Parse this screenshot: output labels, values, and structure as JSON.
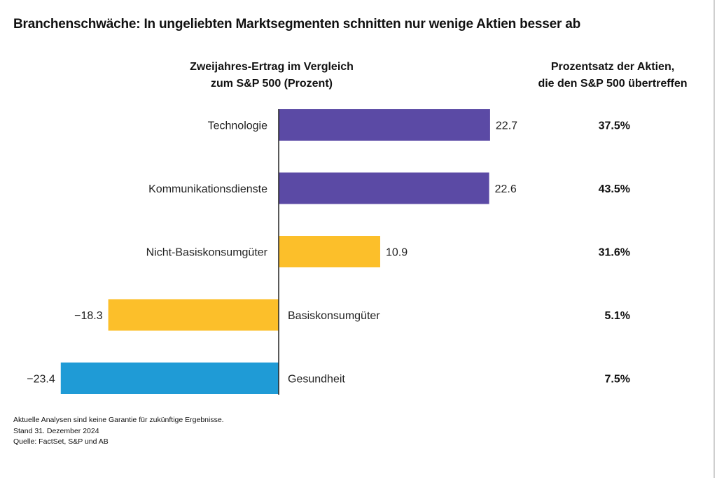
{
  "title": "Branchenschwäche: In ungeliebten Marktsegmenten schnitten nur wenige Aktien besser ab",
  "column_headers": {
    "left_line1": "Zweijahres-Ertrag im Vergleich",
    "left_line2": "zum S&P 500 (Prozent)",
    "right_line1": "Prozentsatz der Aktien,",
    "right_line2": "die den S&P 500 übertreffen"
  },
  "footnotes": {
    "disclaimer": "Aktuelle Analysen sind keine Garantie für zukünftige Ergebnisse.",
    "date": "Stand 31. Dezember 2024",
    "source": "Quelle: FactSet, S&P und AB"
  },
  "colors": {
    "purple": "#5b4aa5",
    "yellow": "#fcbf2a",
    "blue": "#1f9bd6",
    "axis": "#222222"
  },
  "chart_data": {
    "type": "bar",
    "orientation": "horizontal",
    "categories": [
      "Technologie",
      "Kommunikationsdienste",
      "Nicht-Basiskonsumgüter",
      "Basiskonsumgüter",
      "Gesundheit"
    ],
    "values": [
      22.7,
      22.6,
      10.9,
      -18.3,
      -23.4
    ],
    "value_labels": [
      "22.7",
      "22.6",
      "10.9",
      "−18.3",
      "−23.4"
    ],
    "bar_colors": [
      "purple",
      "purple",
      "yellow",
      "yellow",
      "blue"
    ],
    "pct_outperforming": [
      "37.5%",
      "43.5%",
      "31.6%",
      "5.1%",
      "7.5%"
    ],
    "xlim": [
      -23.4,
      22.7
    ],
    "grid": false,
    "legend": "none"
  }
}
